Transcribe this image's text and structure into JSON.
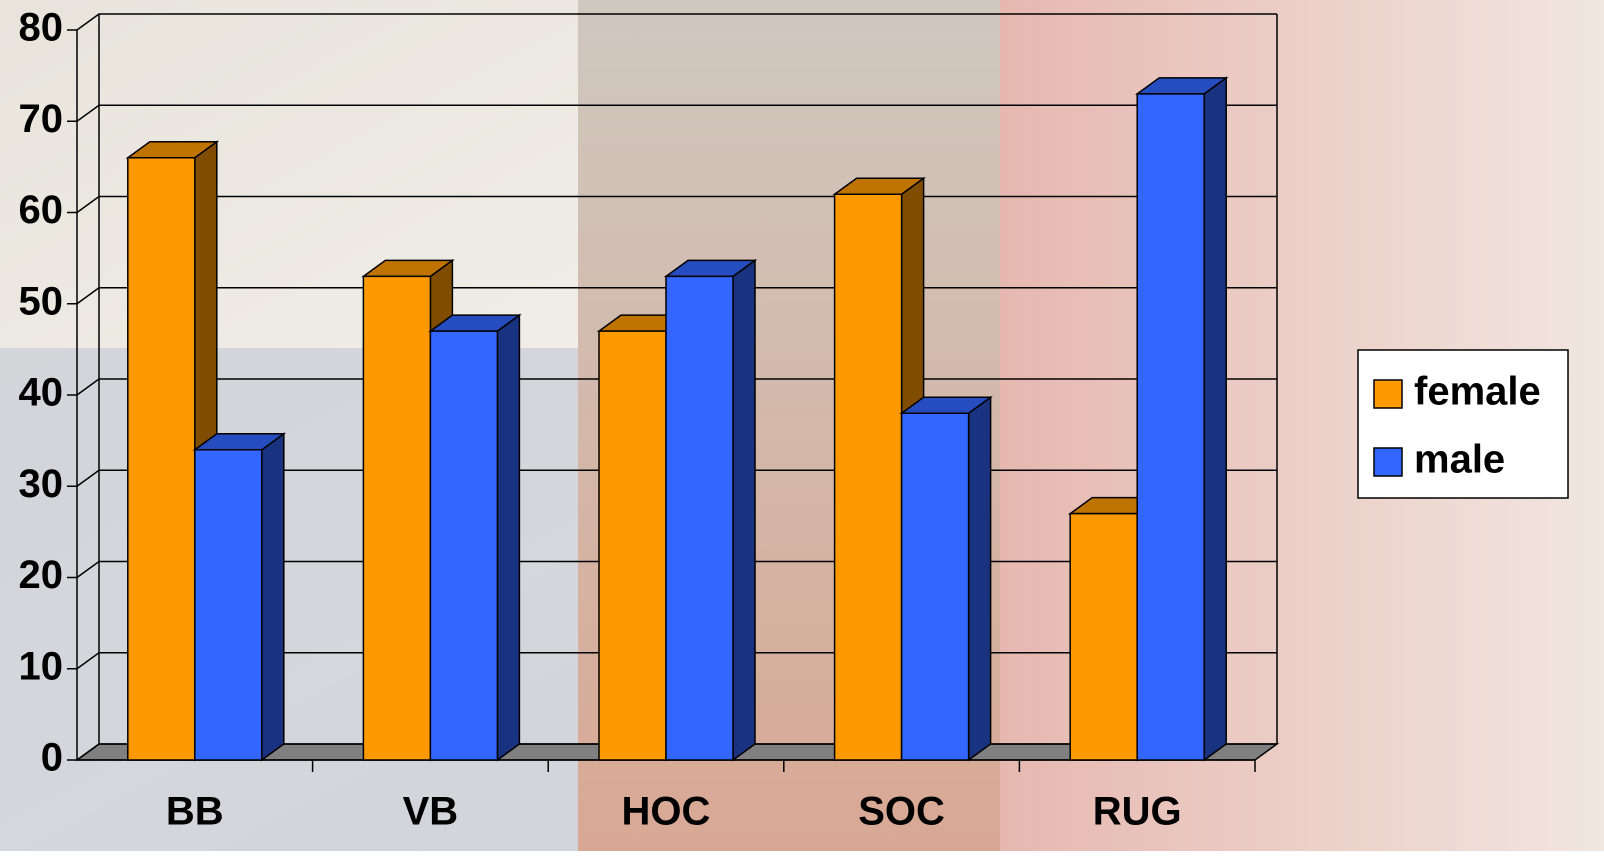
{
  "chart_data": {
    "type": "bar3d",
    "categories": [
      "BB",
      "VB",
      "HOC",
      "SOC",
      "RUG"
    ],
    "series": [
      {
        "name": "female",
        "color": "#ff9900",
        "values": [
          66,
          53,
          47,
          62,
          27
        ]
      },
      {
        "name": "male",
        "color": "#3366ff",
        "values": [
          34,
          47,
          53,
          38,
          73
        ]
      }
    ],
    "ylim": [
      0,
      80
    ],
    "yticks": [
      0,
      10,
      20,
      30,
      40,
      50,
      60,
      70,
      80
    ],
    "grid": true,
    "legend": "right"
  }
}
